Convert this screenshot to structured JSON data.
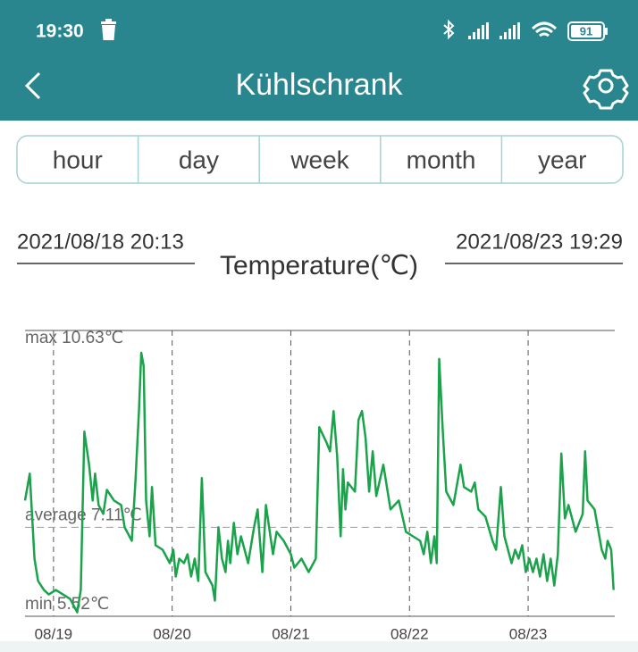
{
  "status_bar": {
    "time": "19:30",
    "battery": "91"
  },
  "header": {
    "title": "Kühlschrank"
  },
  "tabs": [
    "hour",
    "day",
    "week",
    "month",
    "year"
  ],
  "range": {
    "start": "2021/08/18 20:13",
    "end": "2021/08/23 19:29"
  },
  "chart_data": {
    "type": "line",
    "title": "Temperature(℃)",
    "color": "#1aa34a",
    "xlim": [
      18.76,
      23.73
    ],
    "xticks": [
      {
        "value": 19,
        "label": "08/19"
      },
      {
        "value": 20,
        "label": "08/20"
      },
      {
        "value": 21,
        "label": "08/21"
      },
      {
        "value": 22,
        "label": "08/22"
      },
      {
        "value": 23,
        "label": "08/23"
      }
    ],
    "ylim": [
      5.52,
      10.63
    ],
    "reference_lines": [
      {
        "value": 10.63,
        "label": "max 10.63℃"
      },
      {
        "value": 7.11,
        "label": "average 7.11℃"
      },
      {
        "value": 5.52,
        "label": "min 5.52℃"
      }
    ],
    "x": [
      18.76,
      18.8,
      18.84,
      18.87,
      18.92,
      18.96,
      19.02,
      19.08,
      19.14,
      19.2,
      19.23,
      19.26,
      19.3,
      19.33,
      19.35,
      19.38,
      19.42,
      19.45,
      19.51,
      19.57,
      19.6,
      19.66,
      19.69,
      19.72,
      19.74,
      19.76,
      19.78,
      19.81,
      19.83,
      19.86,
      19.92,
      19.98,
      20.01,
      20.03,
      20.06,
      20.1,
      20.13,
      20.16,
      20.19,
      20.22,
      20.25,
      20.28,
      20.34,
      20.36,
      20.39,
      20.42,
      20.45,
      20.47,
      20.49,
      20.52,
      20.55,
      20.58,
      20.64,
      20.69,
      20.72,
      20.74,
      20.76,
      20.79,
      20.85,
      20.88,
      20.94,
      21.0,
      21.03,
      21.09,
      21.15,
      21.21,
      21.24,
      21.3,
      21.33,
      21.36,
      21.39,
      21.42,
      21.44,
      21.46,
      21.48,
      21.54,
      21.57,
      21.6,
      21.63,
      21.66,
      21.69,
      21.72,
      21.78,
      21.84,
      21.91,
      21.97,
      22.03,
      22.09,
      22.12,
      22.15,
      22.18,
      22.21,
      22.23,
      22.25,
      22.28,
      22.31,
      22.37,
      22.43,
      22.46,
      22.52,
      22.55,
      22.58,
      22.64,
      22.7,
      22.73,
      22.77,
      22.8,
      22.86,
      22.89,
      22.92,
      22.95,
      22.98,
      23.01,
      23.04,
      23.07,
      23.1,
      23.13,
      23.16,
      23.19,
      23.22,
      23.25,
      23.28,
      23.31,
      23.34,
      23.4,
      23.46,
      23.48,
      23.5,
      23.56,
      23.62,
      23.65,
      23.67,
      23.7,
      23.72
    ],
    "values": [
      7.59,
      8.07,
      6.55,
      6.15,
      5.99,
      5.91,
      5.99,
      5.91,
      5.83,
      5.59,
      5.99,
      8.82,
      8.23,
      7.59,
      8.07,
      7.51,
      7.35,
      7.78,
      7.59,
      7.51,
      7.11,
      6.87,
      7.91,
      9.19,
      10.23,
      9.99,
      7.59,
      6.95,
      7.83,
      6.79,
      6.71,
      6.47,
      6.71,
      6.23,
      6.55,
      6.47,
      6.63,
      6.23,
      6.55,
      6.15,
      7.99,
      6.31,
      6.07,
      5.8,
      7.11,
      6.55,
      6.31,
      6.87,
      6.47,
      7.19,
      6.63,
      6.95,
      6.47,
      7.11,
      7.43,
      6.87,
      6.31,
      7.51,
      6.63,
      7.03,
      6.87,
      6.63,
      6.39,
      6.55,
      6.31,
      6.55,
      8.9,
      8.63,
      8.47,
      9.19,
      8.39,
      6.95,
      8.15,
      7.43,
      7.91,
      7.75,
      9.03,
      9.19,
      8.71,
      7.75,
      8.47,
      7.67,
      8.23,
      7.43,
      7.59,
      7.03,
      6.95,
      6.87,
      6.63,
      7.03,
      6.47,
      6.95,
      6.47,
      10.12,
      8.87,
      7.75,
      7.51,
      8.23,
      7.83,
      7.75,
      7.91,
      7.43,
      7.3,
      6.87,
      6.71,
      7.83,
      6.95,
      6.47,
      6.71,
      6.55,
      6.79,
      6.31,
      6.55,
      6.31,
      6.55,
      6.23,
      6.63,
      6.15,
      6.55,
      6.07,
      6.63,
      8.43,
      7.27,
      7.51,
      7.03,
      7.35,
      8.47,
      7.59,
      7.43,
      6.71,
      6.55,
      6.87,
      6.71,
      5.99
    ]
  }
}
